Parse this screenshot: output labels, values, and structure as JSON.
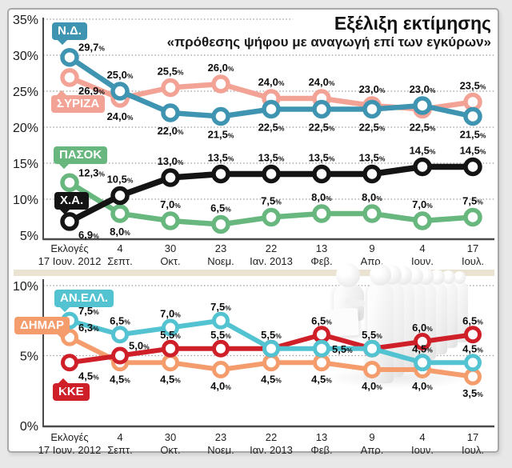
{
  "header": {
    "title": "Εξέλιξη εκτίμησης",
    "subtitle": "«πρόθεσης ψήφου με αναγωγή επί των εγκύρων»"
  },
  "colors": {
    "nd_blue": "#3f95b1",
    "syriza_salmon": "#f3a395",
    "pasok_green": "#67b77e",
    "xa_black": "#141414",
    "anel_cyan": "#54c3d1",
    "dimar_orange": "#f49c6b",
    "kke_red": "#cf2029",
    "grid_gray": "#9c9c9c",
    "axis_gray": "#4a4a4a",
    "divider_beige": "#ebe3d1",
    "page_background": "#e8e8e8"
  },
  "chart_data": [
    {
      "id": "top-poll-chart",
      "type": "line",
      "ylim": [
        5,
        35
      ],
      "yticks": [
        35,
        30,
        25,
        20,
        15,
        10,
        5
      ],
      "ytick_suffix": "%",
      "grid": "dotted-horizontal",
      "legend_position": "callout-badges-left",
      "x_categories": [
        [
          "Εκλογές",
          "17 Ιουν. 2012"
        ],
        [
          "4",
          "Σεπτ."
        ],
        [
          "30",
          "Οκτ."
        ],
        [
          "23",
          "Νοεμ."
        ],
        [
          "22",
          "Ιαν. 2013"
        ],
        [
          "13",
          "Φεβ."
        ],
        [
          "9",
          "Απρ."
        ],
        [
          "4",
          "Ιουν."
        ],
        [
          "17",
          "Ιουλ."
        ]
      ],
      "series": [
        {
          "name": "ΣΥΡΙΖΑ",
          "color": "#f3a395",
          "values": [
            26.9,
            24.0,
            25.5,
            26.0,
            24.0,
            24.0,
            23.0,
            22.5,
            23.5
          ],
          "labels": [
            "26,9",
            "24,0",
            "25,5",
            "26,0",
            "24,0",
            "24,0",
            "23,0",
            "22,5",
            "23,5"
          ],
          "label_side": [
            "br",
            "b",
            "a",
            "a",
            "a",
            "a",
            "a",
            "b",
            "a"
          ]
        },
        {
          "name": "Ν.Δ.",
          "color": "#3f95b1",
          "values": [
            29.7,
            25.0,
            22.0,
            21.5,
            22.5,
            22.5,
            22.5,
            23.0,
            21.5
          ],
          "labels": [
            "29,7",
            "25,0",
            "22,0",
            "21,5",
            "22,5",
            "22,5",
            "22,5",
            "23,0",
            "21,5"
          ],
          "label_side": [
            "ar",
            "a",
            "b",
            "b",
            "b",
            "b",
            "b",
            "a",
            "b"
          ]
        },
        {
          "name": "ΠΑΣΟΚ",
          "color": "#67b77e",
          "values": [
            12.3,
            8.0,
            7.0,
            6.5,
            7.5,
            8.0,
            8.0,
            7.0,
            7.5
          ],
          "labels": [
            "12,3",
            "8,0",
            "7,0",
            "6,5",
            "7,5",
            "8,0",
            "8,0",
            "7,0",
            "7,5"
          ],
          "label_side": [
            "ar",
            "b",
            "a",
            "a",
            "a",
            "a",
            "a",
            "a",
            "a"
          ]
        },
        {
          "name": "Χ.Α.",
          "color": "#141414",
          "values": [
            6.9,
            10.5,
            13.0,
            13.5,
            13.5,
            13.5,
            13.5,
            14.5,
            14.5
          ],
          "labels": [
            "6,9",
            "10,5",
            "13,0",
            "13,5",
            "13,5",
            "13,5",
            "13,5",
            "14,5",
            "14,5"
          ],
          "label_side": [
            "br",
            "a",
            "a",
            "a",
            "a",
            "a",
            "a",
            "a",
            "a"
          ]
        }
      ]
    },
    {
      "id": "bottom-poll-chart",
      "type": "line",
      "ylim": [
        0,
        10
      ],
      "yticks": [
        10,
        5,
        0
      ],
      "ytick_suffix": "%",
      "grid": "dotted-horizontal",
      "legend_position": "callout-badges-left",
      "x_categories": [
        [
          "Εκλογές",
          "17 Ιουν. 2012"
        ],
        [
          "4",
          "Σεπτ."
        ],
        [
          "30",
          "Οκτ."
        ],
        [
          "23",
          "Νοεμ."
        ],
        [
          "22",
          "Ιαν. 2013"
        ],
        [
          "13",
          "Φεβ."
        ],
        [
          "9",
          "Απρ."
        ],
        [
          "4",
          "Ιουν."
        ],
        [
          "17",
          "Ιουλ."
        ]
      ],
      "series": [
        {
          "name": "ΔΗΜΑΡ",
          "color": "#f49c6b",
          "values": [
            6.3,
            4.5,
            4.5,
            4.0,
            4.5,
            4.5,
            4.0,
            4.0,
            3.5
          ],
          "labels": [
            "6,3",
            "4,5",
            "4,5",
            "4,0",
            "4,5",
            "4,5",
            "4,0",
            "4,0",
            "3,5"
          ],
          "label_side": [
            "ar",
            "b",
            "b",
            "b",
            "b",
            "b",
            "b",
            "b",
            "b"
          ]
        },
        {
          "name": "ΚΚΕ",
          "color": "#cf2029",
          "values": [
            4.5,
            5.0,
            5.5,
            5.5,
            5.5,
            6.5,
            5.5,
            6.0,
            6.5
          ],
          "labels": [
            "4,5",
            "5,0",
            "5,5",
            "5,5",
            "",
            "6,5",
            "",
            "6,0",
            "6,5"
          ],
          "label_side": [
            "br",
            "ar",
            "a",
            "a",
            "",
            "a",
            "",
            "a",
            "a"
          ]
        },
        {
          "name": "ΑΝ.ΕΛΛ.",
          "color": "#54c3d1",
          "values": [
            7.5,
            6.5,
            7.0,
            7.5,
            5.5,
            5.5,
            5.5,
            4.5,
            4.5
          ],
          "labels": [
            "7,5",
            "6,5",
            "7,0",
            "7,5",
            "5,5",
            "5,5",
            "5,5",
            "4,5",
            "4,5"
          ],
          "label_side": [
            "ar",
            "a",
            "a",
            "a",
            "a",
            "r",
            "a",
            "a",
            "a"
          ]
        }
      ]
    }
  ],
  "percent_sign": "%"
}
